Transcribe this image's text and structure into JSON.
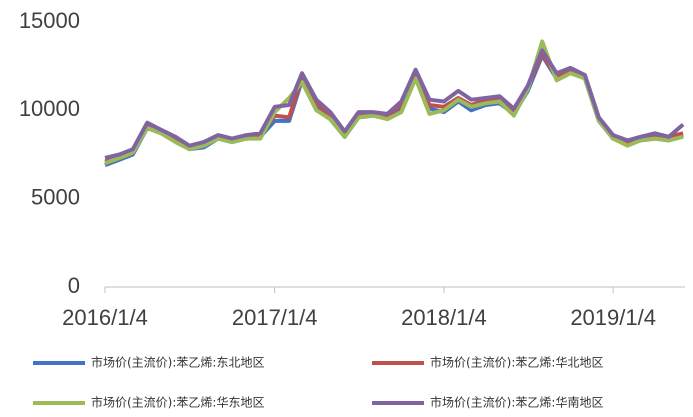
{
  "chart_data": {
    "type": "line",
    "x": [
      "2016/1/4",
      "2016/2/4",
      "2016/3/4",
      "2016/4/4",
      "2016/5/4",
      "2016/6/4",
      "2016/7/4",
      "2016/8/4",
      "2016/9/4",
      "2016/10/4",
      "2016/11/4",
      "2016/12/4",
      "2017/1/4",
      "2017/2/4",
      "2017/3/4",
      "2017/4/4",
      "2017/5/4",
      "2017/6/4",
      "2017/7/4",
      "2017/8/4",
      "2017/9/4",
      "2017/10/4",
      "2017/11/4",
      "2017/12/4",
      "2018/1/4",
      "2018/2/4",
      "2018/3/4",
      "2018/4/4",
      "2018/5/4",
      "2018/6/4",
      "2018/7/4",
      "2018/8/4",
      "2018/9/4",
      "2018/10/4",
      "2018/11/4",
      "2018/12/4",
      "2019/1/4",
      "2019/2/4",
      "2019/3/4",
      "2019/4/4",
      "2019/5/4",
      "2019/6/4"
    ],
    "series": [
      {
        "name": "市场价(主流价):苯乙烯:东北地区",
        "color": "#4472c4",
        "values": [
          6900,
          7200,
          7500,
          9000,
          8700,
          8300,
          7800,
          7900,
          8400,
          8200,
          8400,
          8500,
          9400,
          9400,
          11700,
          10100,
          9500,
          8500,
          9600,
          9700,
          9600,
          10100,
          11900,
          10100,
          9900,
          10500,
          10000,
          10300,
          10400,
          9800,
          11100,
          13100,
          11800,
          12200,
          11800,
          9400,
          8400,
          8100,
          8300,
          8400,
          8300,
          8600
        ]
      },
      {
        "name": "市场价(主流价):苯乙烯:华北地区",
        "color": "#c0504d",
        "values": [
          7100,
          7300,
          7600,
          9100,
          8800,
          8400,
          7900,
          8100,
          8500,
          8300,
          8500,
          8600,
          9700,
          9600,
          11900,
          10400,
          9700,
          8700,
          9800,
          9800,
          9700,
          10300,
          12000,
          10300,
          10200,
          10700,
          10300,
          10600,
          10600,
          9900,
          11300,
          13200,
          11900,
          12300,
          11900,
          9500,
          8400,
          8100,
          8400,
          8600,
          8500,
          8700
        ]
      },
      {
        "name": "市场价(主流价):苯乙烯:华东地区",
        "color": "#9bbb59",
        "values": [
          7000,
          7300,
          7600,
          9000,
          8700,
          8200,
          7800,
          8000,
          8400,
          8200,
          8400,
          8400,
          9900,
          10700,
          11600,
          10000,
          9500,
          8500,
          9600,
          9700,
          9500,
          9900,
          11800,
          9800,
          10000,
          10600,
          10200,
          10400,
          10500,
          9700,
          11200,
          13900,
          11700,
          12100,
          11800,
          9400,
          8400,
          8000,
          8300,
          8400,
          8300,
          8500
        ]
      },
      {
        "name": "市场价(主流价):苯乙烯:华南地区",
        "color": "#8064a2",
        "values": [
          7300,
          7500,
          7800,
          9300,
          8900,
          8500,
          8000,
          8200,
          8600,
          8400,
          8600,
          8700,
          10200,
          10300,
          12100,
          10600,
          9900,
          8800,
          9900,
          9900,
          9800,
          10500,
          12300,
          10600,
          10500,
          11100,
          10600,
          10700,
          10800,
          10100,
          11400,
          13400,
          12100,
          12400,
          12000,
          9600,
          8600,
          8300,
          8500,
          8700,
          8500,
          9200
        ]
      }
    ],
    "xlim": [
      "2016/1/4",
      "2019/6/8"
    ],
    "xticks": [
      "2016/1/4",
      "2017/1/4",
      "2018/1/4",
      "2019/1/4"
    ],
    "ylim": [
      0,
      15000
    ],
    "yticks": [
      0,
      5000,
      10000,
      15000
    ],
    "legend": "bottom"
  }
}
